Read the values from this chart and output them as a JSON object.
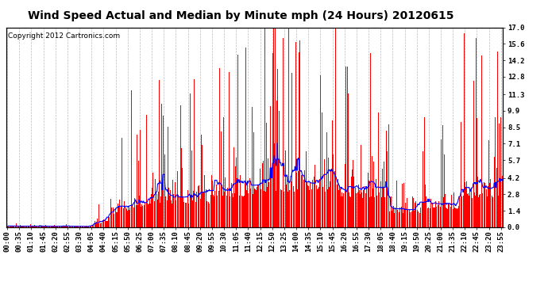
{
  "title": "Wind Speed Actual and Median by Minute mph (24 Hours) 20120615",
  "copyright": "Copyright 2012 Cartronics.com",
  "yticks": [
    0.0,
    1.4,
    2.8,
    4.2,
    5.7,
    7.1,
    8.5,
    9.9,
    11.3,
    12.8,
    14.2,
    15.6,
    17.0
  ],
  "ymax": 17.0,
  "ymin": 0.0,
  "bar_color": "#ff0000",
  "median_color": "#0000ff",
  "background_color": "#ffffff",
  "grid_color": "#bbbbbb",
  "title_fontsize": 10,
  "copyright_fontsize": 6.5,
  "tick_fontsize": 6.5,
  "minutes_per_day": 1440
}
